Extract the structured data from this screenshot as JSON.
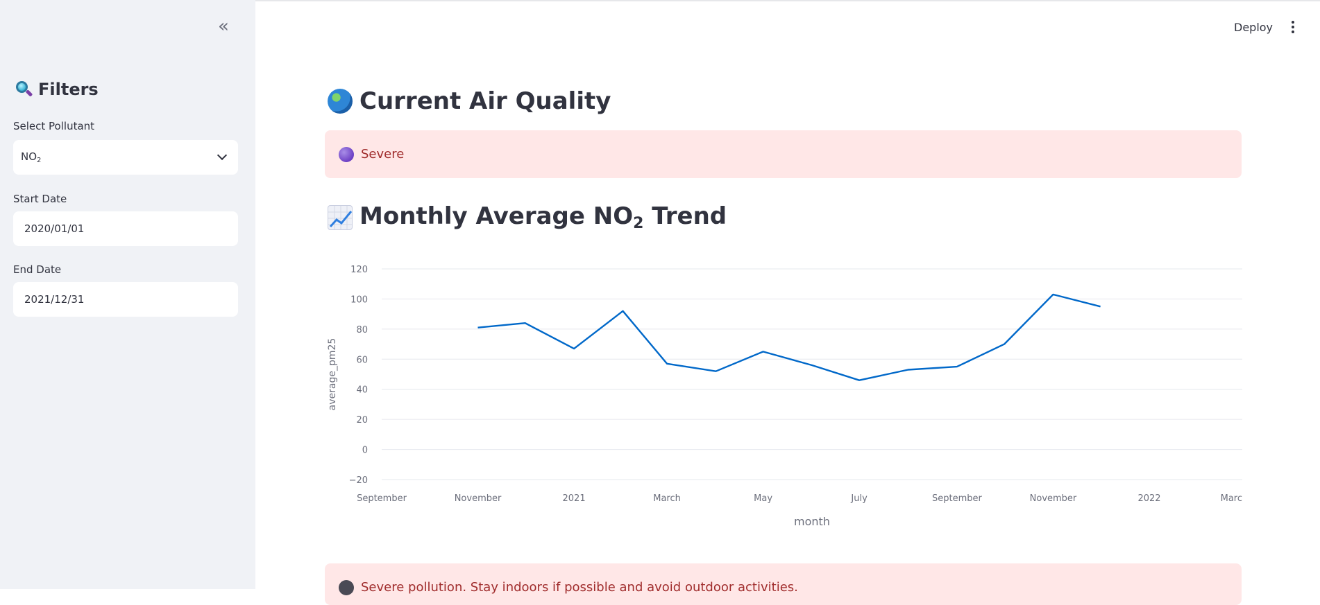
{
  "sidebar": {
    "collapse_icon": "double-chevron-left-icon",
    "filters_title": "Filters",
    "filters_icon": "magnifying-glass-icon",
    "pollutant_label": "Select Pollutant",
    "pollutant_value_main": "NO",
    "pollutant_value_sub": "2",
    "start_label": "Start Date",
    "start_value": "2020/01/01",
    "end_label": "End Date",
    "end_value": "2021/12/31"
  },
  "header": {
    "deploy": "Deploy",
    "menu_icon": "kebab-menu-icon"
  },
  "main": {
    "air_quality_heading": "Current Air Quality",
    "air_quality_icon": "globe-icon",
    "status_text": "Severe",
    "status_icon": "purple-circle-icon",
    "trend_heading_pre": "Monthly Average NO",
    "trend_heading_sub": "2",
    "trend_heading_post": " Trend",
    "trend_icon": "chart-increasing-icon",
    "advice_text": "Severe pollution. Stay indoors if possible and avoid outdoor activities.",
    "advice_icon": "skull-icon"
  },
  "colors": {
    "line": "#0068c9",
    "alert_bg": "#ffe7e7",
    "alert_text": "#a02c2c",
    "sidebar_bg": "#f0f2f6"
  },
  "chart_data": {
    "type": "line",
    "xlabel": "month",
    "ylabel": "average_pm25",
    "ylim": [
      -20,
      120
    ],
    "yticks": [
      -20,
      0,
      20,
      40,
      60,
      80,
      100,
      120
    ],
    "x_ticks": [
      "September",
      "November",
      "2021",
      "March",
      "May",
      "July",
      "September",
      "November",
      "2022",
      "Marc"
    ],
    "x_tick_dates": [
      "2020-09-01",
      "2020-11-01",
      "2021-01-01",
      "2021-03-01",
      "2021-05-01",
      "2021-07-01",
      "2021-09-01",
      "2021-11-01",
      "2022-01-01",
      "2022-03-01"
    ],
    "xlim": [
      "2020-09-01",
      "2022-03-01"
    ],
    "grid": true,
    "series": [
      {
        "x": [
          "2020-11-01",
          "2020-12-01",
          "2021-01-01",
          "2021-02-01",
          "2021-03-01",
          "2021-04-01",
          "2021-05-01",
          "2021-06-01",
          "2021-07-01",
          "2021-08-01",
          "2021-09-01",
          "2021-10-01",
          "2021-11-01",
          "2021-12-01"
        ],
        "values": [
          81,
          84,
          67,
          92,
          57,
          52,
          65,
          56,
          46,
          53,
          55,
          70,
          103,
          95
        ]
      }
    ]
  }
}
